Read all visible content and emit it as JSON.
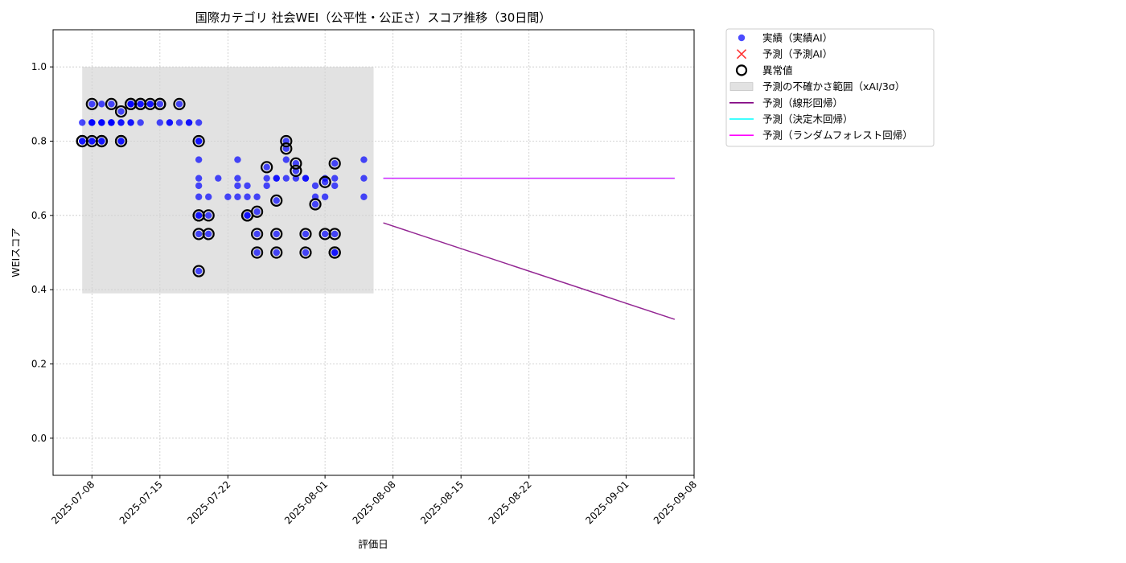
{
  "chart_data": {
    "type": "scatter",
    "title": "国際カテゴリ 社会WEI（公平性・公正さ）スコア推移（30日間）",
    "xlabel": "評価日",
    "ylabel": "WEIスコア",
    "xlim": [
      "2025-07-04",
      "2025-09-08"
    ],
    "ylim": [
      -0.1,
      1.1
    ],
    "grid": true,
    "y_ticks": [
      "0.0",
      "0.2",
      "0.4",
      "0.6",
      "0.8",
      "1.0"
    ],
    "x_ticks": [
      "2025-07-08",
      "2025-07-15",
      "2025-07-22",
      "2025-08-01",
      "2025-08-08",
      "2025-08-15",
      "2025-08-22",
      "2025-09-01",
      "2025-09-08"
    ],
    "colors": {
      "actual": "#0000ff",
      "forecast_marker": "#ff0000",
      "uncertainty_band": "#d3d3d3",
      "linear": "#800080",
      "tree": "#00ffff",
      "forest": "#ff00ff",
      "grid": "#c8c8c8"
    },
    "legend": {
      "placement": "outside-top-right",
      "entries": [
        {
          "label": "実績（実績AI）",
          "kind": "dot",
          "color": "#0000ff"
        },
        {
          "label": "予測（予測AI）",
          "kind": "cross",
          "color": "#ff0000"
        },
        {
          "label": "異常値",
          "kind": "ring",
          "color": "#000000"
        },
        {
          "label": "予測の不確かさ範囲（xAI/3σ）",
          "kind": "band",
          "color": "#d3d3d3"
        },
        {
          "label": "予測（線形回帰）",
          "kind": "line",
          "color": "#800080"
        },
        {
          "label": "予測（決定木回帰）",
          "kind": "line",
          "color": "#00ffff"
        },
        {
          "label": "予測（ランダムフォレスト回帰）",
          "kind": "line",
          "color": "#ff00ff"
        }
      ]
    },
    "uncertainty_band": {
      "x": [
        "2025-07-07",
        "2025-08-06"
      ],
      "y": [
        0.39,
        1.0
      ]
    },
    "forecast_lines": [
      {
        "name": "予測（線形回帰）",
        "color": "#800080",
        "x": [
          "2025-08-07",
          "2025-09-06"
        ],
        "y": [
          0.58,
          0.32
        ]
      },
      {
        "name": "予測（決定木回帰）",
        "color": "#00ffff",
        "x": [
          "2025-08-07",
          "2025-09-06"
        ],
        "y": [
          0.7,
          0.7
        ]
      },
      {
        "name": "予測（ランダムフォレスト回帰）",
        "color": "#ff00ff",
        "x": [
          "2025-08-07",
          "2025-09-06"
        ],
        "y": [
          0.7,
          0.7
        ]
      }
    ],
    "actual_points": [
      [
        "2025-07-07",
        0.85
      ],
      [
        "2025-07-07",
        0.8
      ],
      [
        "2025-07-07",
        0.8
      ],
      [
        "2025-07-08",
        0.85
      ],
      [
        "2025-07-08",
        0.8
      ],
      [
        "2025-07-08",
        0.85
      ],
      [
        "2025-07-08",
        0.8
      ],
      [
        "2025-07-08",
        0.85
      ],
      [
        "2025-07-08",
        0.9
      ],
      [
        "2025-07-09",
        0.85
      ],
      [
        "2025-07-09",
        0.9
      ],
      [
        "2025-07-09",
        0.85
      ],
      [
        "2025-07-09",
        0.8
      ],
      [
        "2025-07-09",
        0.8
      ],
      [
        "2025-07-09",
        0.85
      ],
      [
        "2025-07-10",
        0.85
      ],
      [
        "2025-07-10",
        0.85
      ],
      [
        "2025-07-10",
        0.9
      ],
      [
        "2025-07-10",
        0.85
      ],
      [
        "2025-07-10",
        0.85
      ],
      [
        "2025-07-11",
        0.8
      ],
      [
        "2025-07-11",
        0.85
      ],
      [
        "2025-07-11",
        0.8
      ],
      [
        "2025-07-11",
        0.85
      ],
      [
        "2025-07-11",
        0.88
      ],
      [
        "2025-07-12",
        0.9
      ],
      [
        "2025-07-12",
        0.85
      ],
      [
        "2025-07-12",
        0.9
      ],
      [
        "2025-07-12",
        0.85
      ],
      [
        "2025-07-12",
        0.9
      ],
      [
        "2025-07-13",
        0.9
      ],
      [
        "2025-07-13",
        0.85
      ],
      [
        "2025-07-13",
        0.9
      ],
      [
        "2025-07-14",
        0.9
      ],
      [
        "2025-07-14",
        0.9
      ],
      [
        "2025-07-15",
        0.9
      ],
      [
        "2025-07-15",
        0.85
      ],
      [
        "2025-07-16",
        0.85
      ],
      [
        "2025-07-16",
        0.85
      ],
      [
        "2025-07-17",
        0.9
      ],
      [
        "2025-07-17",
        0.85
      ],
      [
        "2025-07-18",
        0.85
      ],
      [
        "2025-07-18",
        0.85
      ],
      [
        "2025-07-19",
        0.8
      ],
      [
        "2025-07-19",
        0.68
      ],
      [
        "2025-07-19",
        0.85
      ],
      [
        "2025-07-19",
        0.8
      ],
      [
        "2025-07-19",
        0.6
      ],
      [
        "2025-07-19",
        0.55
      ],
      [
        "2025-07-19",
        0.65
      ],
      [
        "2025-07-19",
        0.75
      ],
      [
        "2025-07-19",
        0.7
      ],
      [
        "2025-07-19",
        0.45
      ],
      [
        "2025-07-19",
        0.6
      ],
      [
        "2025-07-20",
        0.65
      ],
      [
        "2025-07-20",
        0.6
      ],
      [
        "2025-07-20",
        0.55
      ],
      [
        "2025-07-21",
        0.7
      ],
      [
        "2025-07-22",
        0.65
      ],
      [
        "2025-07-23",
        0.7
      ],
      [
        "2025-07-23",
        0.75
      ],
      [
        "2025-07-23",
        0.68
      ],
      [
        "2025-07-23",
        0.65
      ],
      [
        "2025-07-24",
        0.6
      ],
      [
        "2025-07-24",
        0.65
      ],
      [
        "2025-07-24",
        0.68
      ],
      [
        "2025-07-24",
        0.6
      ],
      [
        "2025-07-25",
        0.65
      ],
      [
        "2025-07-25",
        0.55
      ],
      [
        "2025-07-25",
        0.5
      ],
      [
        "2025-07-25",
        0.61
      ],
      [
        "2025-07-26",
        0.7
      ],
      [
        "2025-07-26",
        0.73
      ],
      [
        "2025-07-26",
        0.68
      ],
      [
        "2025-07-27",
        0.7
      ],
      [
        "2025-07-27",
        0.55
      ],
      [
        "2025-07-27",
        0.5
      ],
      [
        "2025-07-27",
        0.64
      ],
      [
        "2025-07-27",
        0.7
      ],
      [
        "2025-07-28",
        0.8
      ],
      [
        "2025-07-28",
        0.78
      ],
      [
        "2025-07-28",
        0.7
      ],
      [
        "2025-07-28",
        0.75
      ],
      [
        "2025-07-29",
        0.74
      ],
      [
        "2025-07-29",
        0.72
      ],
      [
        "2025-07-29",
        0.7
      ],
      [
        "2025-07-30",
        0.55
      ],
      [
        "2025-07-30",
        0.5
      ],
      [
        "2025-07-30",
        0.7
      ],
      [
        "2025-07-30",
        0.7
      ],
      [
        "2025-07-31",
        0.65
      ],
      [
        "2025-07-31",
        0.63
      ],
      [
        "2025-07-31",
        0.68
      ],
      [
        "2025-08-01",
        0.55
      ],
      [
        "2025-08-01",
        0.69
      ],
      [
        "2025-08-01",
        0.65
      ],
      [
        "2025-08-01",
        0.7
      ],
      [
        "2025-08-02",
        0.55
      ],
      [
        "2025-08-02",
        0.5
      ],
      [
        "2025-08-02",
        0.5
      ],
      [
        "2025-08-02",
        0.74
      ],
      [
        "2025-08-02",
        0.7
      ],
      [
        "2025-08-02",
        0.68
      ],
      [
        "2025-08-05",
        0.75
      ],
      [
        "2025-08-05",
        0.7
      ],
      [
        "2025-08-05",
        0.65
      ]
    ],
    "anomaly_points": [
      [
        "2025-07-07",
        0.8
      ],
      [
        "2025-07-07",
        0.8
      ],
      [
        "2025-07-08",
        0.8
      ],
      [
        "2025-07-08",
        0.9
      ],
      [
        "2025-07-09",
        0.8
      ],
      [
        "2025-07-09",
        0.8
      ],
      [
        "2025-07-10",
        0.9
      ],
      [
        "2025-07-11",
        0.8
      ],
      [
        "2025-07-11",
        0.8
      ],
      [
        "2025-07-11",
        0.88
      ],
      [
        "2025-07-12",
        0.9
      ],
      [
        "2025-07-12",
        0.9
      ],
      [
        "2025-07-13",
        0.9
      ],
      [
        "2025-07-13",
        0.9
      ],
      [
        "2025-07-14",
        0.9
      ],
      [
        "2025-07-15",
        0.9
      ],
      [
        "2025-07-15",
        0.9
      ],
      [
        "2025-07-17",
        0.9
      ],
      [
        "2025-07-19",
        0.8
      ],
      [
        "2025-07-19",
        0.6
      ],
      [
        "2025-07-19",
        0.55
      ],
      [
        "2025-07-19",
        0.45
      ],
      [
        "2025-07-19",
        0.6
      ],
      [
        "2025-07-20",
        0.6
      ],
      [
        "2025-07-20",
        0.55
      ],
      [
        "2025-07-24",
        0.6
      ],
      [
        "2025-07-24",
        0.6
      ],
      [
        "2025-07-25",
        0.55
      ],
      [
        "2025-07-25",
        0.5
      ],
      [
        "2025-07-25",
        0.61
      ],
      [
        "2025-07-26",
        0.73
      ],
      [
        "2025-07-27",
        0.55
      ],
      [
        "2025-07-27",
        0.5
      ],
      [
        "2025-07-27",
        0.64
      ],
      [
        "2025-07-28",
        0.8
      ],
      [
        "2025-07-28",
        0.78
      ],
      [
        "2025-07-29",
        0.74
      ],
      [
        "2025-07-29",
        0.72
      ],
      [
        "2025-07-30",
        0.55
      ],
      [
        "2025-07-30",
        0.5
      ],
      [
        "2025-07-31",
        0.63
      ],
      [
        "2025-08-01",
        0.55
      ],
      [
        "2025-08-01",
        0.69
      ],
      [
        "2025-08-02",
        0.55
      ],
      [
        "2025-08-02",
        0.5
      ],
      [
        "2025-08-02",
        0.5
      ],
      [
        "2025-08-02",
        0.74
      ]
    ]
  }
}
